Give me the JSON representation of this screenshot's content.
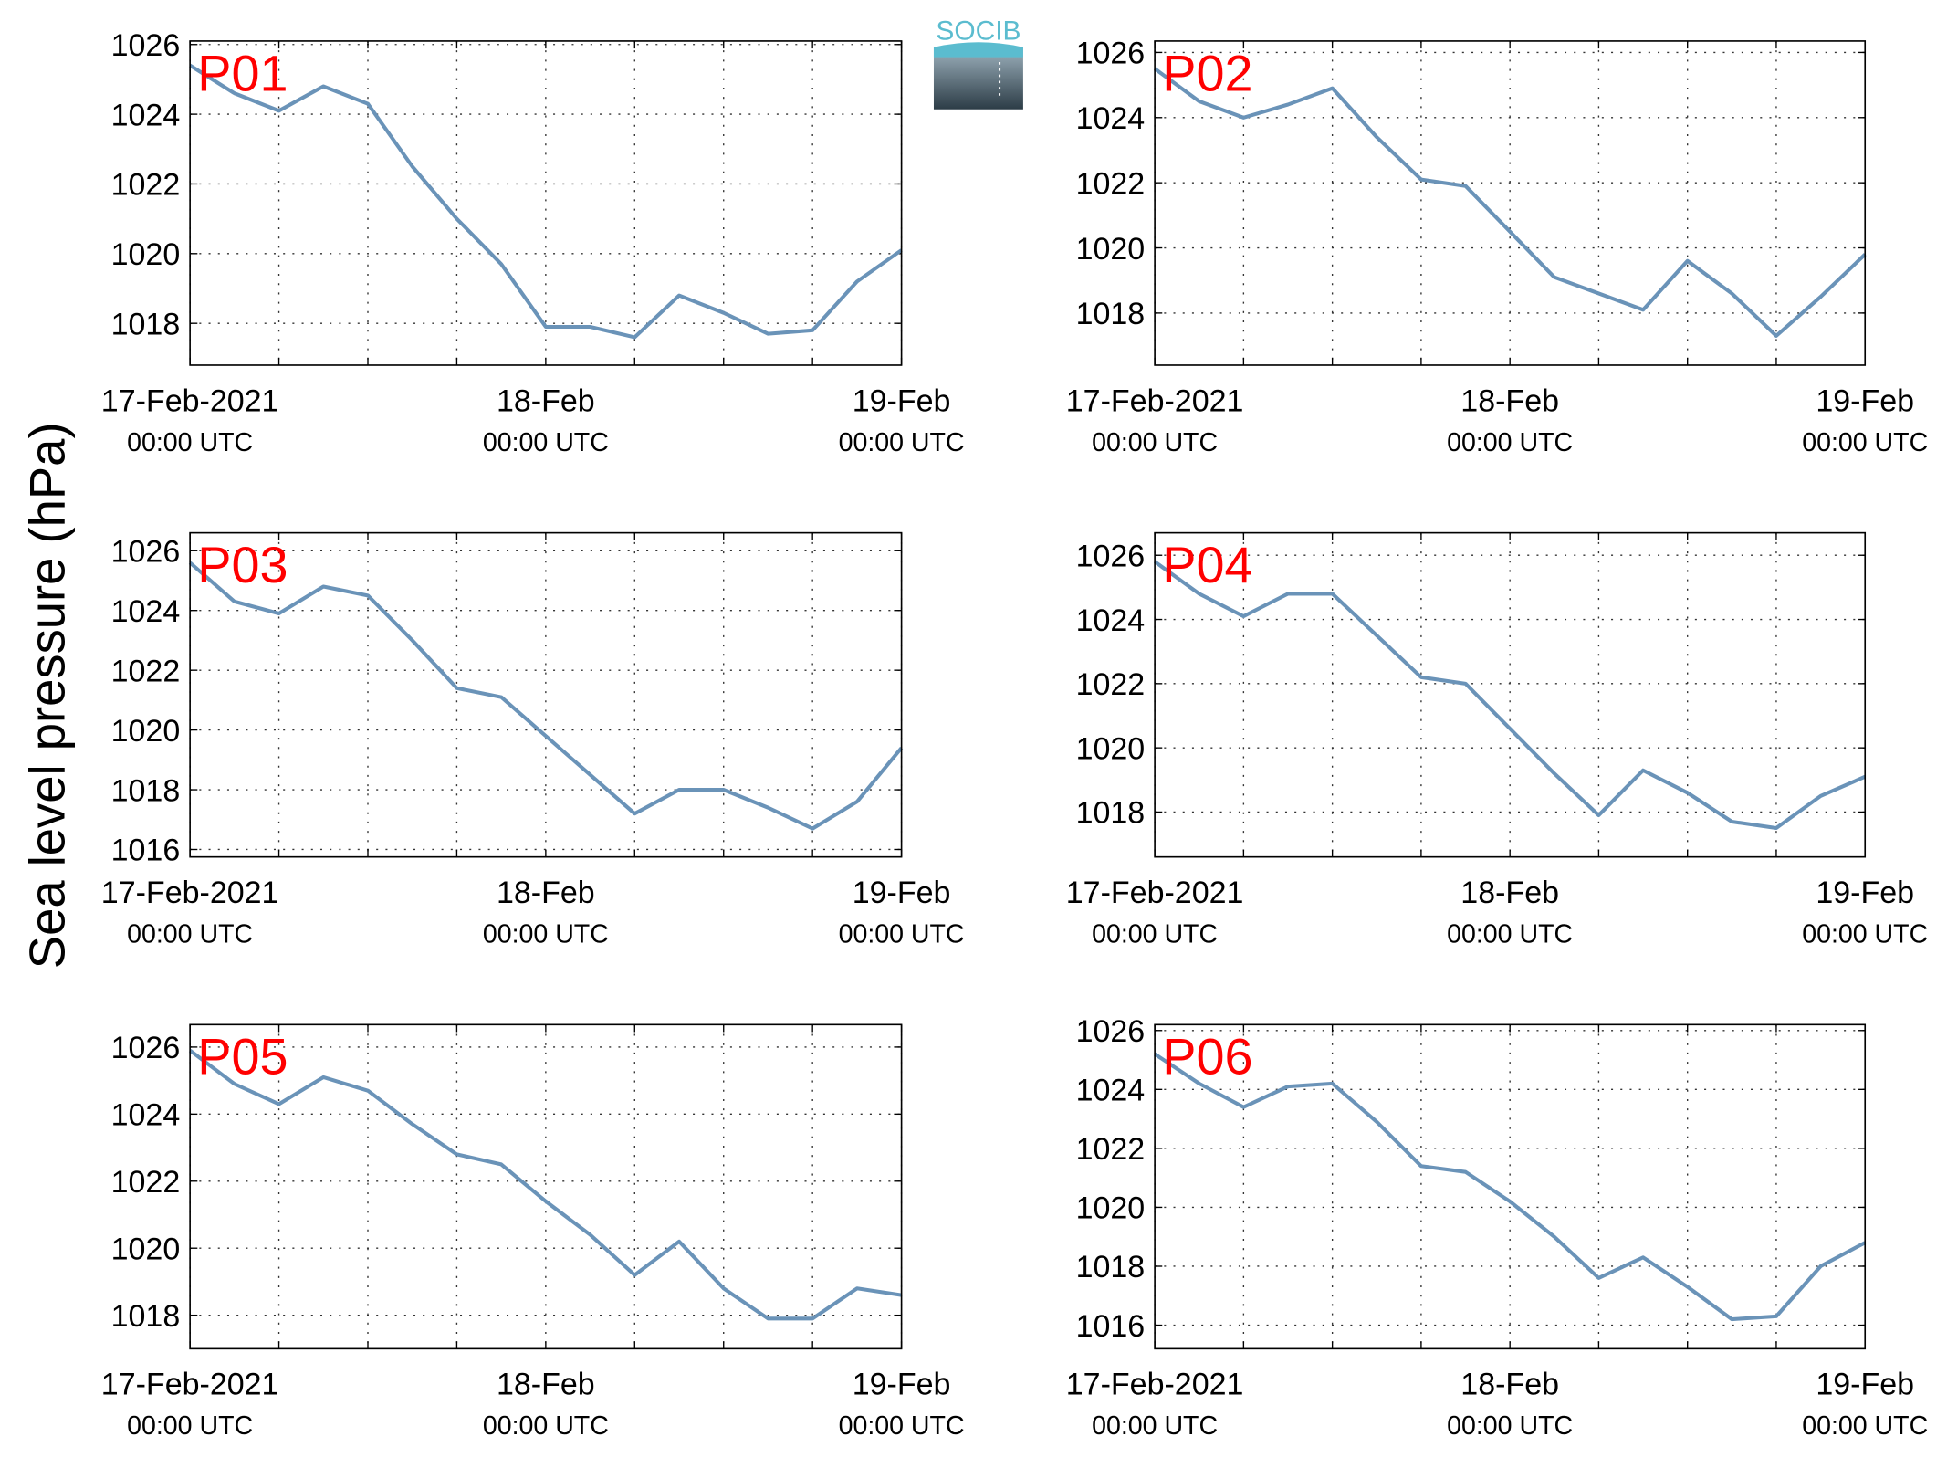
{
  "ylabel": "Sea level pressure (hPa)",
  "logo": "SOCIB",
  "chart_data": [
    {
      "type": "line",
      "title": "P01",
      "color": "#6a93b8",
      "x": [
        "2021-02-17T00:00",
        "2021-02-17T03:00",
        "2021-02-17T06:00",
        "2021-02-17T09:00",
        "2021-02-17T12:00",
        "2021-02-17T15:00",
        "2021-02-17T18:00",
        "2021-02-17T21:00",
        "2021-02-18T00:00",
        "2021-02-18T03:00",
        "2021-02-18T06:00",
        "2021-02-18T09:00",
        "2021-02-18T12:00",
        "2021-02-18T15:00",
        "2021-02-18T18:00",
        "2021-02-18T21:00",
        "2021-02-19T00:00"
      ],
      "values": [
        1025.4,
        1024.6,
        1024.1,
        1024.8,
        1024.3,
        1022.5,
        1021.0,
        1019.7,
        1017.9,
        1017.9,
        1017.6,
        1018.8,
        1018.3,
        1017.7,
        1017.8,
        1019.2,
        1020.1
      ],
      "xlim": [
        "2021-02-17T00:00",
        "2021-02-19T00:00"
      ],
      "xticks": [
        {
          "value": "2021-02-17T00:00",
          "label": "17-Feb-2021",
          "time_label": "00:00 UTC"
        },
        {
          "value": "2021-02-18T00:00",
          "label": "18-Feb",
          "time_label": "00:00 UTC"
        },
        {
          "value": "2021-02-19T00:00",
          "label": "19-Feb",
          "time_label": "00:00 UTC"
        }
      ],
      "x_minor_ticks": [
        "2021-02-17T06:00",
        "2021-02-17T12:00",
        "2021-02-17T18:00",
        "2021-02-18T06:00",
        "2021-02-18T12:00",
        "2021-02-18T18:00"
      ],
      "ylim": [
        1016.8,
        1026.1
      ],
      "yticks": [
        1018,
        1020,
        1022,
        1024,
        1026
      ],
      "grid": true
    },
    {
      "type": "line",
      "title": "P02",
      "color": "#6a93b8",
      "x": [
        "2021-02-17T00:00",
        "2021-02-17T03:00",
        "2021-02-17T06:00",
        "2021-02-17T09:00",
        "2021-02-17T12:00",
        "2021-02-17T15:00",
        "2021-02-17T18:00",
        "2021-02-17T21:00",
        "2021-02-18T00:00",
        "2021-02-18T03:00",
        "2021-02-18T06:00",
        "2021-02-18T09:00",
        "2021-02-18T12:00",
        "2021-02-18T15:00",
        "2021-02-18T18:00",
        "2021-02-18T21:00",
        "2021-02-19T00:00"
      ],
      "values": [
        1025.5,
        1024.5,
        1024.0,
        1024.4,
        1024.9,
        1023.4,
        1022.1,
        1021.9,
        1020.5,
        1019.1,
        1018.6,
        1018.1,
        1019.6,
        1018.6,
        1017.3,
        1018.5,
        1019.8
      ],
      "xlim": [
        "2021-02-17T00:00",
        "2021-02-19T00:00"
      ],
      "xticks": [
        {
          "value": "2021-02-17T00:00",
          "label": "17-Feb-2021",
          "time_label": "00:00 UTC"
        },
        {
          "value": "2021-02-18T00:00",
          "label": "18-Feb",
          "time_label": "00:00 UTC"
        },
        {
          "value": "2021-02-19T00:00",
          "label": "19-Feb",
          "time_label": "00:00 UTC"
        }
      ],
      "x_minor_ticks": [
        "2021-02-17T06:00",
        "2021-02-17T12:00",
        "2021-02-17T18:00",
        "2021-02-18T06:00",
        "2021-02-18T12:00",
        "2021-02-18T18:00"
      ],
      "ylim": [
        1016.4,
        1026.35
      ],
      "yticks": [
        1018,
        1020,
        1022,
        1024,
        1026
      ],
      "grid": true
    },
    {
      "type": "line",
      "title": "P03",
      "color": "#6a93b8",
      "x": [
        "2021-02-17T00:00",
        "2021-02-17T03:00",
        "2021-02-17T06:00",
        "2021-02-17T09:00",
        "2021-02-17T12:00",
        "2021-02-17T15:00",
        "2021-02-17T18:00",
        "2021-02-17T21:00",
        "2021-02-18T00:00",
        "2021-02-18T03:00",
        "2021-02-18T06:00",
        "2021-02-18T09:00",
        "2021-02-18T12:00",
        "2021-02-18T15:00",
        "2021-02-18T18:00",
        "2021-02-18T21:00",
        "2021-02-19T00:00"
      ],
      "values": [
        1025.6,
        1024.3,
        1023.9,
        1024.8,
        1024.5,
        1023.0,
        1021.4,
        1021.1,
        1019.8,
        1018.5,
        1017.2,
        1018.0,
        1018.0,
        1017.4,
        1016.7,
        1017.6,
        1019.4
      ],
      "xlim": [
        "2021-02-17T00:00",
        "2021-02-19T00:00"
      ],
      "xticks": [
        {
          "value": "2021-02-17T00:00",
          "label": "17-Feb-2021",
          "time_label": "00:00 UTC"
        },
        {
          "value": "2021-02-18T00:00",
          "label": "18-Feb",
          "time_label": "00:00 UTC"
        },
        {
          "value": "2021-02-19T00:00",
          "label": "19-Feb",
          "time_label": "00:00 UTC"
        }
      ],
      "x_minor_ticks": [
        "2021-02-17T06:00",
        "2021-02-17T12:00",
        "2021-02-17T18:00",
        "2021-02-18T06:00",
        "2021-02-18T12:00",
        "2021-02-18T18:00"
      ],
      "ylim": [
        1015.75,
        1026.6
      ],
      "yticks": [
        1016,
        1018,
        1020,
        1022,
        1024,
        1026
      ],
      "grid": true
    },
    {
      "type": "line",
      "title": "P04",
      "color": "#6a93b8",
      "x": [
        "2021-02-17T00:00",
        "2021-02-17T03:00",
        "2021-02-17T06:00",
        "2021-02-17T09:00",
        "2021-02-17T12:00",
        "2021-02-17T15:00",
        "2021-02-17T18:00",
        "2021-02-17T21:00",
        "2021-02-18T00:00",
        "2021-02-18T03:00",
        "2021-02-18T06:00",
        "2021-02-18T09:00",
        "2021-02-18T12:00",
        "2021-02-18T15:00",
        "2021-02-18T18:00",
        "2021-02-18T21:00",
        "2021-02-19T00:00"
      ],
      "values": [
        1025.8,
        1024.8,
        1024.1,
        1024.8,
        1024.8,
        1023.5,
        1022.2,
        1022.0,
        1020.6,
        1019.2,
        1017.9,
        1019.3,
        1018.6,
        1017.7,
        1017.5,
        1018.5,
        1019.1
      ],
      "xlim": [
        "2021-02-17T00:00",
        "2021-02-19T00:00"
      ],
      "xticks": [
        {
          "value": "2021-02-17T00:00",
          "label": "17-Feb-2021",
          "time_label": "00:00 UTC"
        },
        {
          "value": "2021-02-18T00:00",
          "label": "18-Feb",
          "time_label": "00:00 UTC"
        },
        {
          "value": "2021-02-19T00:00",
          "label": "19-Feb",
          "time_label": "00:00 UTC"
        }
      ],
      "x_minor_ticks": [
        "2021-02-17T06:00",
        "2021-02-17T12:00",
        "2021-02-17T18:00",
        "2021-02-18T06:00",
        "2021-02-18T12:00",
        "2021-02-18T18:00"
      ],
      "ylim": [
        1016.6,
        1026.7
      ],
      "yticks": [
        1018,
        1020,
        1022,
        1024,
        1026
      ],
      "grid": true
    },
    {
      "type": "line",
      "title": "P05",
      "color": "#6a93b8",
      "x": [
        "2021-02-17T00:00",
        "2021-02-17T03:00",
        "2021-02-17T06:00",
        "2021-02-17T09:00",
        "2021-02-17T12:00",
        "2021-02-17T15:00",
        "2021-02-17T18:00",
        "2021-02-17T21:00",
        "2021-02-18T00:00",
        "2021-02-18T03:00",
        "2021-02-18T06:00",
        "2021-02-18T09:00",
        "2021-02-18T12:00",
        "2021-02-18T15:00",
        "2021-02-18T18:00",
        "2021-02-18T21:00",
        "2021-02-19T00:00"
      ],
      "values": [
        1025.9,
        1024.9,
        1024.3,
        1025.1,
        1024.7,
        1023.7,
        1022.8,
        1022.5,
        1021.4,
        1020.4,
        1019.2,
        1020.2,
        1018.8,
        1017.9,
        1017.9,
        1018.8,
        1018.6
      ],
      "xlim": [
        "2021-02-17T00:00",
        "2021-02-19T00:00"
      ],
      "xticks": [
        {
          "value": "2021-02-17T00:00",
          "label": "17-Feb-2021",
          "time_label": "00:00 UTC"
        },
        {
          "value": "2021-02-18T00:00",
          "label": "18-Feb",
          "time_label": "00:00 UTC"
        },
        {
          "value": "2021-02-19T00:00",
          "label": "19-Feb",
          "time_label": "00:00 UTC"
        }
      ],
      "x_minor_ticks": [
        "2021-02-17T06:00",
        "2021-02-17T12:00",
        "2021-02-17T18:00",
        "2021-02-18T06:00",
        "2021-02-18T12:00",
        "2021-02-18T18:00"
      ],
      "ylim": [
        1017.0,
        1026.67
      ],
      "yticks": [
        1018,
        1020,
        1022,
        1024,
        1026
      ],
      "grid": true
    },
    {
      "type": "line",
      "title": "P06",
      "color": "#6a93b8",
      "x": [
        "2021-02-17T00:00",
        "2021-02-17T03:00",
        "2021-02-17T06:00",
        "2021-02-17T09:00",
        "2021-02-17T12:00",
        "2021-02-17T15:00",
        "2021-02-17T18:00",
        "2021-02-17T21:00",
        "2021-02-18T00:00",
        "2021-02-18T03:00",
        "2021-02-18T06:00",
        "2021-02-18T09:00",
        "2021-02-18T12:00",
        "2021-02-18T15:00",
        "2021-02-18T18:00",
        "2021-02-18T21:00",
        "2021-02-19T00:00"
      ],
      "values": [
        1025.2,
        1024.2,
        1023.4,
        1024.1,
        1024.2,
        1022.9,
        1021.4,
        1021.2,
        1020.2,
        1019.0,
        1017.6,
        1018.3,
        1017.3,
        1016.2,
        1016.3,
        1018.0,
        1018.8
      ],
      "xlim": [
        "2021-02-17T00:00",
        "2021-02-19T00:00"
      ],
      "xticks": [
        {
          "value": "2021-02-17T00:00",
          "label": "17-Feb-2021",
          "time_label": "00:00 UTC"
        },
        {
          "value": "2021-02-18T00:00",
          "label": "18-Feb",
          "time_label": "00:00 UTC"
        },
        {
          "value": "2021-02-19T00:00",
          "label": "19-Feb",
          "time_label": "00:00 UTC"
        }
      ],
      "x_minor_ticks": [
        "2021-02-17T06:00",
        "2021-02-17T12:00",
        "2021-02-17T18:00",
        "2021-02-18T06:00",
        "2021-02-18T12:00",
        "2021-02-18T18:00"
      ],
      "ylim": [
        1015.2,
        1026.2
      ],
      "yticks": [
        1016,
        1018,
        1020,
        1022,
        1024,
        1026
      ],
      "grid": true
    }
  ]
}
